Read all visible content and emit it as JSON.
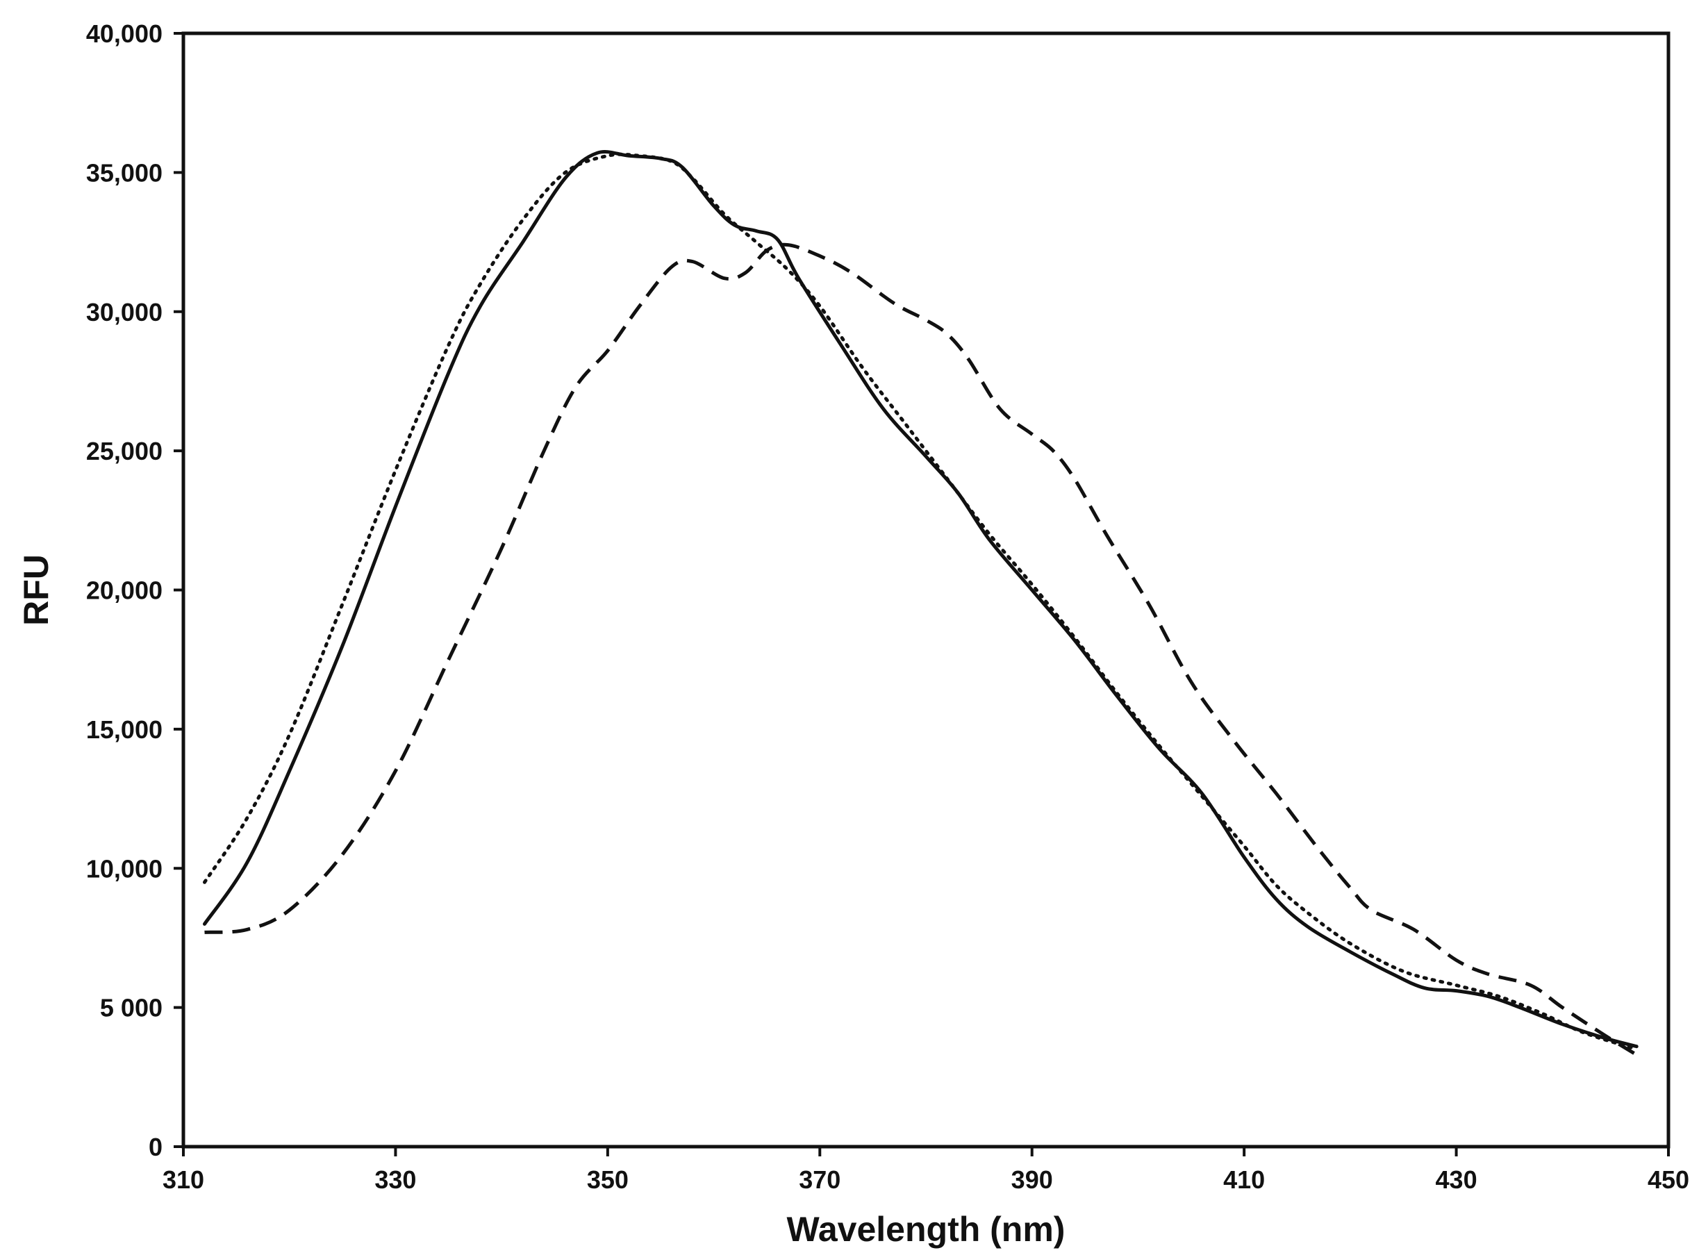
{
  "chart_data": {
    "type": "line",
    "title": "",
    "xlabel": "Wavelength (nm)",
    "ylabel": "RFU",
    "xlim": [
      310,
      450
    ],
    "ylim": [
      0,
      40000
    ],
    "x_ticks": [
      310,
      330,
      350,
      370,
      390,
      410,
      430,
      450
    ],
    "x_tick_labels": [
      "310",
      "330",
      "350",
      "370",
      "390",
      "410",
      "430",
      "450"
    ],
    "y_ticks": [
      0,
      5000,
      10000,
      15000,
      20000,
      25000,
      30000,
      35000,
      40000
    ],
    "y_tick_labels": [
      "0",
      "5 000",
      "10,000",
      "15,000",
      "20,000",
      "25,000",
      "30,000",
      "35,000",
      "40,000"
    ],
    "grid": false,
    "legend": "none",
    "series": [
      {
        "style": "solid",
        "color": "#111111",
        "points": [
          [
            312,
            8000
          ],
          [
            316,
            10200
          ],
          [
            320,
            13500
          ],
          [
            325,
            18000
          ],
          [
            330,
            23000
          ],
          [
            335,
            27800
          ],
          [
            338,
            30200
          ],
          [
            342,
            32500
          ],
          [
            346,
            34800
          ],
          [
            349,
            35700
          ],
          [
            352,
            35600
          ],
          [
            355,
            35500
          ],
          [
            357,
            35200
          ],
          [
            360,
            33800
          ],
          [
            362,
            33100
          ],
          [
            364,
            32900
          ],
          [
            366,
            32600
          ],
          [
            368,
            31200
          ],
          [
            372,
            28800
          ],
          [
            376,
            26500
          ],
          [
            380,
            24800
          ],
          [
            383,
            23500
          ],
          [
            386,
            21800
          ],
          [
            390,
            20000
          ],
          [
            394,
            18200
          ],
          [
            398,
            16200
          ],
          [
            402,
            14300
          ],
          [
            406,
            12700
          ],
          [
            410,
            10400
          ],
          [
            413,
            8900
          ],
          [
            416,
            7900
          ],
          [
            420,
            7000
          ],
          [
            424,
            6200
          ],
          [
            427,
            5700
          ],
          [
            430,
            5600
          ],
          [
            433,
            5400
          ],
          [
            436,
            5000
          ],
          [
            440,
            4400
          ],
          [
            444,
            3900
          ],
          [
            447,
            3600
          ]
        ]
      },
      {
        "style": "dotted",
        "color": "#111111",
        "points": [
          [
            312,
            9500
          ],
          [
            316,
            11800
          ],
          [
            320,
            14800
          ],
          [
            325,
            19500
          ],
          [
            330,
            24300
          ],
          [
            335,
            28800
          ],
          [
            338,
            31000
          ],
          [
            342,
            33300
          ],
          [
            346,
            35000
          ],
          [
            350,
            35600
          ],
          [
            353,
            35600
          ],
          [
            356,
            35400
          ],
          [
            358,
            34800
          ],
          [
            361,
            33500
          ],
          [
            364,
            32500
          ],
          [
            367,
            31500
          ],
          [
            370,
            30200
          ],
          [
            374,
            28000
          ],
          [
            378,
            26000
          ],
          [
            382,
            24000
          ],
          [
            386,
            22000
          ],
          [
            390,
            20200
          ],
          [
            394,
            18300
          ],
          [
            398,
            16300
          ],
          [
            402,
            14400
          ],
          [
            406,
            12600
          ],
          [
            410,
            10800
          ],
          [
            413,
            9400
          ],
          [
            416,
            8400
          ],
          [
            420,
            7300
          ],
          [
            425,
            6300
          ],
          [
            430,
            5800
          ],
          [
            434,
            5400
          ],
          [
            438,
            4800
          ],
          [
            442,
            4100
          ],
          [
            447,
            3500
          ]
        ]
      },
      {
        "style": "dashed",
        "color": "#111111",
        "points": [
          [
            312,
            7700
          ],
          [
            316,
            7800
          ],
          [
            320,
            8500
          ],
          [
            325,
            10500
          ],
          [
            330,
            13500
          ],
          [
            335,
            17500
          ],
          [
            340,
            21500
          ],
          [
            344,
            25000
          ],
          [
            347,
            27300
          ],
          [
            350,
            28600
          ],
          [
            353,
            30200
          ],
          [
            356,
            31600
          ],
          [
            358,
            31800
          ],
          [
            361,
            31200
          ],
          [
            363,
            31400
          ],
          [
            365,
            32200
          ],
          [
            367,
            32400
          ],
          [
            370,
            32000
          ],
          [
            373,
            31400
          ],
          [
            377,
            30300
          ],
          [
            380,
            29700
          ],
          [
            382,
            29200
          ],
          [
            384,
            28300
          ],
          [
            387,
            26500
          ],
          [
            390,
            25600
          ],
          [
            392,
            25000
          ],
          [
            394,
            24000
          ],
          [
            397,
            22000
          ],
          [
            401,
            19500
          ],
          [
            405,
            16700
          ],
          [
            409,
            14600
          ],
          [
            413,
            12700
          ],
          [
            417,
            10700
          ],
          [
            420,
            9300
          ],
          [
            422,
            8500
          ],
          [
            426,
            7800
          ],
          [
            430,
            6700
          ],
          [
            433,
            6200
          ],
          [
            437,
            5800
          ],
          [
            440,
            5000
          ],
          [
            444,
            4000
          ],
          [
            447,
            3300
          ]
        ]
      }
    ]
  }
}
